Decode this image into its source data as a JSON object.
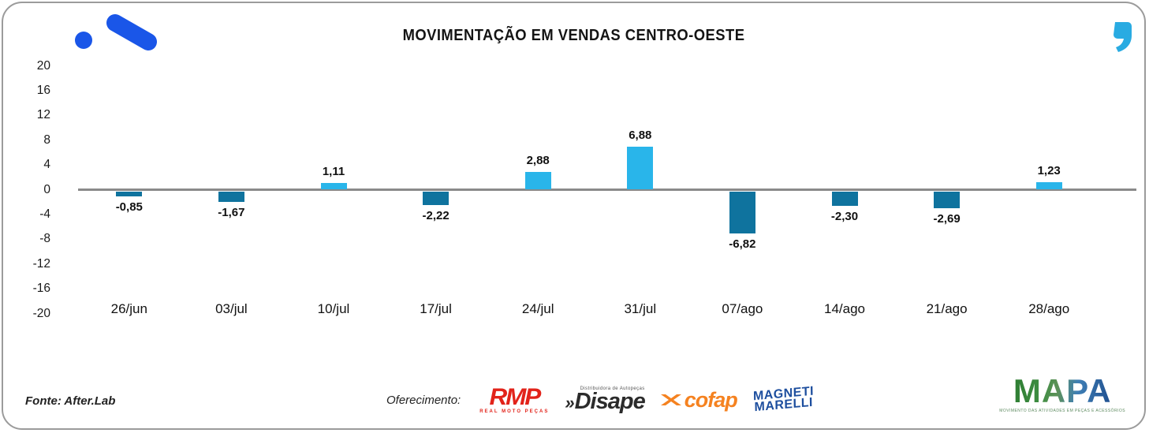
{
  "title": "MOVIMENTAÇÃO EM VENDAS CENTRO-OESTE",
  "branding": {
    "logo_icon": "afterlab-logo-icon",
    "logo_color": "#1A56E8",
    "quote_icon": "quote-icon",
    "quote_color": "#29ABE2"
  },
  "chart_data": {
    "type": "bar",
    "title": "MOVIMENTAÇÃO EM VENDAS CENTRO-OESTE",
    "categories": [
      "26/jun",
      "03/jul",
      "10/jul",
      "17/jul",
      "24/jul",
      "31/jul",
      "07/ago",
      "14/ago",
      "21/ago",
      "28/ago"
    ],
    "values": [
      -0.85,
      -1.67,
      1.11,
      -2.22,
      2.88,
      6.88,
      -6.82,
      -2.3,
      -2.69,
      1.23
    ],
    "value_labels": [
      "-0,85",
      "-1,67",
      "1,11",
      "-2,22",
      "2,88",
      "6,88",
      "-6,82",
      "-2,30",
      "-2,69",
      "1,23"
    ],
    "y_ticks": [
      20,
      16,
      12,
      8,
      4,
      0,
      -4,
      -8,
      -12,
      -16,
      -20
    ],
    "ylim": [
      -20,
      20
    ],
    "xlabel": "",
    "ylabel": "",
    "grid": false,
    "legend": false,
    "positive_color": "#29B5EA",
    "negative_color": "#0F739E",
    "zero_line_color": "#8A8A8A"
  },
  "footer": {
    "source": "Fonte: After.Lab",
    "sponsor_heading": "Oferecimento:",
    "sponsors": {
      "rmp": {
        "name": "RMP",
        "subtext": "REAL MOTO PEÇAS",
        "color": "#E2231A"
      },
      "disape": {
        "prefix": "»",
        "name": "Disape",
        "subtext": "Distribuidora de Autopeças",
        "color": "#2B2B2B"
      },
      "cofap": {
        "name": "cofap",
        "color": "#F58220"
      },
      "magneti": {
        "line1": "MAGNETI",
        "line2": "MARELLI",
        "color": "#1D4E9E"
      }
    },
    "mapa": {
      "name": "MAPA",
      "tagline": "MOVIMENTO DAS ATIVIDADES EM PEÇAS E ACESSÓRIOS"
    }
  }
}
